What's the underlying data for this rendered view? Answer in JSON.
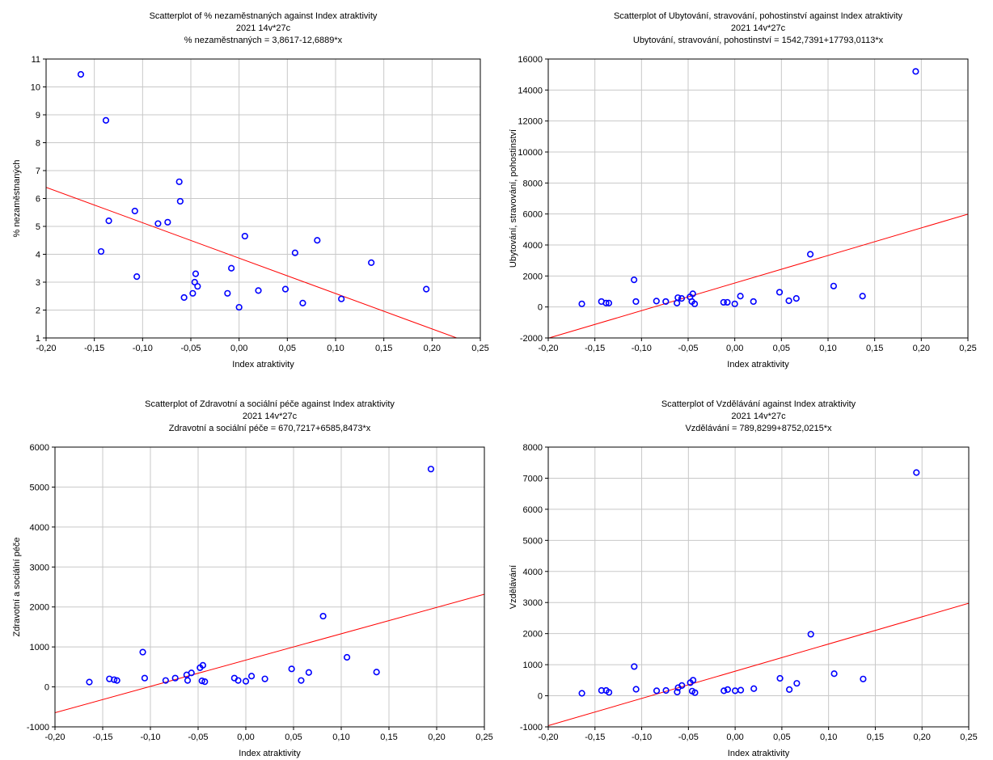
{
  "chart_data": [
    {
      "type": "scatter",
      "title": "Scatterplot of % nezaměstnaných against Index atraktivity",
      "subtitle": "2021 14v*27c",
      "equation": "% nezaměstnaných = 3,8617-12,6889*x",
      "xlabel": "Index atraktivity",
      "ylabel": "% nezaměstnaných",
      "xlim": [
        -0.2,
        0.25
      ],
      "ylim": [
        1,
        11
      ],
      "xticks": [
        -0.2,
        -0.15,
        -0.1,
        -0.05,
        0,
        0.05,
        0.1,
        0.15,
        0.2,
        0.25
      ],
      "xtick_labels": [
        "-0,20",
        "-0,15",
        "-0,10",
        "-0,05",
        "0,00",
        "0,05",
        "0,10",
        "0,15",
        "0,20",
        "0,25"
      ],
      "yticks": [
        1,
        2,
        3,
        4,
        5,
        6,
        7,
        8,
        9,
        10,
        11
      ],
      "ytick_labels": [
        "1",
        "2",
        "3",
        "4",
        "5",
        "6",
        "7",
        "8",
        "9",
        "10",
        "11"
      ],
      "fit": {
        "intercept": 3.8617,
        "slope": -12.6889
      },
      "grid": true,
      "marker_color": "#0000ff",
      "fit_color": "#ff0000",
      "x": [
        -0.164,
        -0.143,
        -0.138,
        -0.135,
        -0.108,
        -0.106,
        -0.084,
        -0.074,
        -0.062,
        -0.061,
        -0.057,
        -0.048,
        -0.046,
        -0.045,
        -0.043,
        -0.012,
        -0.008,
        0.0,
        0.006,
        0.02,
        0.048,
        0.058,
        0.066,
        0.081,
        0.106,
        0.137,
        0.194
      ],
      "y": [
        10.45,
        4.1,
        8.8,
        5.2,
        5.55,
        3.2,
        5.1,
        5.15,
        6.6,
        5.9,
        2.45,
        2.6,
        3.0,
        3.3,
        2.85,
        2.6,
        3.5,
        2.1,
        4.65,
        2.7,
        2.75,
        4.05,
        2.25,
        4.5,
        2.4,
        3.7,
        2.75
      ]
    },
    {
      "type": "scatter",
      "title": "Scatterplot of Ubytování, stravování, pohostinství against Index atraktivity",
      "subtitle": "2021 14v*27c",
      "equation": "Ubytování, stravování, pohostinství = 1542,7391+17793,0113*x",
      "xlabel": "Index atraktivity",
      "ylabel": "Ubytování, stravování, pohostinství",
      "xlim": [
        -0.2,
        0.25
      ],
      "ylim": [
        -2000,
        16000
      ],
      "xticks": [
        -0.2,
        -0.15,
        -0.1,
        -0.05,
        0,
        0.05,
        0.1,
        0.15,
        0.2,
        0.25
      ],
      "xtick_labels": [
        "-0,20",
        "-0,15",
        "-0,10",
        "-0,05",
        "0,00",
        "0,05",
        "0,10",
        "0,15",
        "0,20",
        "0,25"
      ],
      "yticks": [
        -2000,
        0,
        2000,
        4000,
        6000,
        8000,
        10000,
        12000,
        14000,
        16000
      ],
      "ytick_labels": [
        "-2000",
        "0",
        "2000",
        "4000",
        "6000",
        "8000",
        "10000",
        "12000",
        "14000",
        "16000"
      ],
      "fit": {
        "intercept": 1542.7391,
        "slope": 17793.0113
      },
      "grid": true,
      "marker_color": "#0000ff",
      "fit_color": "#ff0000",
      "x": [
        -0.164,
        -0.143,
        -0.138,
        -0.135,
        -0.108,
        -0.106,
        -0.084,
        -0.074,
        -0.062,
        -0.061,
        -0.057,
        -0.048,
        -0.046,
        -0.045,
        -0.043,
        -0.012,
        -0.008,
        0.0,
        0.006,
        0.02,
        0.048,
        0.058,
        0.066,
        0.081,
        0.106,
        0.137,
        0.194
      ],
      "y": [
        200,
        350,
        250,
        250,
        1750,
        350,
        380,
        350,
        250,
        600,
        550,
        650,
        350,
        850,
        200,
        300,
        300,
        200,
        700,
        350,
        950,
        400,
        550,
        3400,
        1350,
        700,
        15200
      ]
    },
    {
      "type": "scatter",
      "title": "Scatterplot of Zdravotní a sociální péče against Index atraktivity",
      "subtitle": "2021 14v*27c",
      "equation": "Zdravotní a sociální péče = 670,7217+6585,8473*x",
      "xlabel": "Index atraktivity",
      "ylabel": "Zdravotní a sociální péče",
      "xlim": [
        -0.2,
        0.25
      ],
      "ylim": [
        -1000,
        6000
      ],
      "xticks": [
        -0.2,
        -0.15,
        -0.1,
        -0.05,
        0,
        0.05,
        0.1,
        0.15,
        0.2,
        0.25
      ],
      "xtick_labels": [
        "-0,20",
        "-0,15",
        "-0,10",
        "-0,05",
        "0,00",
        "0,05",
        "0,10",
        "0,15",
        "0,20",
        "0,25"
      ],
      "yticks": [
        -1000,
        0,
        1000,
        2000,
        3000,
        4000,
        5000,
        6000
      ],
      "ytick_labels": [
        "-1000",
        "0",
        "1000",
        "2000",
        "3000",
        "4000",
        "5000",
        "6000"
      ],
      "fit": {
        "intercept": 670.7217,
        "slope": 6585.8473
      },
      "grid": true,
      "marker_color": "#0000ff",
      "fit_color": "#ff0000",
      "x": [
        -0.164,
        -0.143,
        -0.138,
        -0.135,
        -0.108,
        -0.106,
        -0.084,
        -0.074,
        -0.062,
        -0.061,
        -0.057,
        -0.048,
        -0.046,
        -0.045,
        -0.043,
        -0.012,
        -0.008,
        0.0,
        0.006,
        0.02,
        0.048,
        0.058,
        0.066,
        0.081,
        0.106,
        0.137,
        0.194
      ],
      "y": [
        120,
        200,
        180,
        160,
        870,
        220,
        160,
        220,
        300,
        160,
        350,
        480,
        150,
        540,
        130,
        220,
        160,
        140,
        270,
        200,
        450,
        160,
        360,
        1770,
        740,
        370,
        5450
      ]
    },
    {
      "type": "scatter",
      "title": "Scatterplot of Vzdělávání against Index atraktivity",
      "subtitle": "2021 14v*27c",
      "equation": "Vzdělávání = 789,8299+8752,0215*x",
      "xlabel": "Index atraktivity",
      "ylabel": "Vzdělávání",
      "xlim": [
        -0.2,
        0.25
      ],
      "ylim": [
        -1000,
        8000
      ],
      "xticks": [
        -0.2,
        -0.15,
        -0.1,
        -0.05,
        0,
        0.05,
        0.1,
        0.15,
        0.2,
        0.25
      ],
      "xtick_labels": [
        "-0,20",
        "-0,15",
        "-0,10",
        "-0,05",
        "0,00",
        "0,05",
        "0,10",
        "0,15",
        "0,20",
        "0,25"
      ],
      "yticks": [
        -1000,
        0,
        1000,
        2000,
        3000,
        4000,
        5000,
        6000,
        7000,
        8000
      ],
      "ytick_labels": [
        "-1000",
        "0",
        "1000",
        "2000",
        "3000",
        "4000",
        "5000",
        "6000",
        "7000",
        "8000"
      ],
      "fit": {
        "intercept": 789.8299,
        "slope": 8752.0215
      },
      "grid": true,
      "marker_color": "#0000ff",
      "fit_color": "#ff0000",
      "x": [
        -0.164,
        -0.143,
        -0.138,
        -0.135,
        -0.108,
        -0.106,
        -0.084,
        -0.074,
        -0.062,
        -0.061,
        -0.057,
        -0.048,
        -0.046,
        -0.045,
        -0.043,
        -0.012,
        -0.008,
        0.0,
        0.006,
        0.02,
        0.048,
        0.058,
        0.066,
        0.081,
        0.106,
        0.137,
        0.194
      ],
      "y": [
        80,
        170,
        170,
        110,
        940,
        210,
        160,
        170,
        120,
        260,
        330,
        420,
        150,
        500,
        100,
        160,
        200,
        160,
        180,
        230,
        560,
        200,
        400,
        1980,
        710,
        540,
        7180
      ]
    }
  ]
}
